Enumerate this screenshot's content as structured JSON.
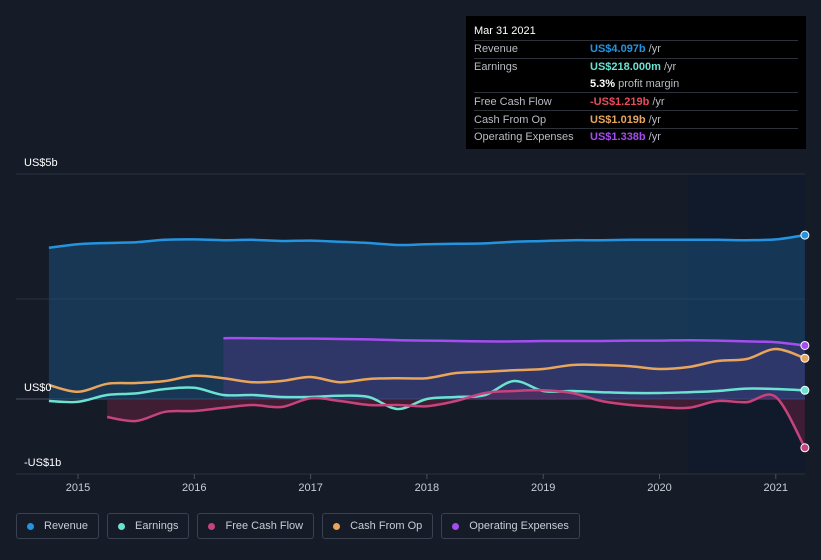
{
  "tooltip": {
    "date": "Mar 31 2021",
    "rows": [
      {
        "key": "Revenue",
        "value": "US$4.097b",
        "unit": "/yr",
        "color": "#2394df"
      },
      {
        "key": "Earnings",
        "value": "US$218.000m",
        "unit": "/yr",
        "color": "#6ce2d2"
      },
      {
        "key": "",
        "value": "5.3%",
        "unit": "profit margin",
        "color": "#ffffff"
      },
      {
        "key": "Free Cash Flow",
        "value": "-US$1.219b",
        "unit": "/yr",
        "color": "#ea4b5c"
      },
      {
        "key": "Cash From Op",
        "value": "US$1.019b",
        "unit": "/yr",
        "color": "#e9a55c"
      },
      {
        "key": "Operating Expenses",
        "value": "US$1.338b",
        "unit": "/yr",
        "color": "#a64cf0"
      }
    ]
  },
  "chart_data": {
    "type": "area",
    "y_labels": [
      "US$5b",
      "US$0",
      "-US$1b"
    ],
    "ylim": [
      -1.5,
      5.5
    ],
    "xlim": [
      2014.58,
      2021.25
    ],
    "x_ticks": [
      "2015",
      "2016",
      "2017",
      "2018",
      "2019",
      "2020",
      "2021"
    ],
    "forecast_start": 2020.25,
    "series": [
      {
        "name": "Revenue",
        "color": "#2394df",
        "points": [
          [
            2014.75,
            3.78
          ],
          [
            2015.0,
            3.87
          ],
          [
            2015.25,
            3.9
          ],
          [
            2015.5,
            3.92
          ],
          [
            2015.75,
            3.98
          ],
          [
            2016.0,
            3.99
          ],
          [
            2016.25,
            3.97
          ],
          [
            2016.5,
            3.98
          ],
          [
            2016.75,
            3.95
          ],
          [
            2017.0,
            3.96
          ],
          [
            2017.25,
            3.93
          ],
          [
            2017.5,
            3.9
          ],
          [
            2017.75,
            3.85
          ],
          [
            2018.0,
            3.87
          ],
          [
            2018.25,
            3.88
          ],
          [
            2018.5,
            3.89
          ],
          [
            2018.75,
            3.93
          ],
          [
            2019.0,
            3.95
          ],
          [
            2019.25,
            3.97
          ],
          [
            2019.5,
            3.97
          ],
          [
            2019.75,
            3.98
          ],
          [
            2020.0,
            3.98
          ],
          [
            2020.25,
            3.98
          ],
          [
            2020.5,
            3.98
          ],
          [
            2020.75,
            3.97
          ],
          [
            2021.0,
            3.99
          ],
          [
            2021.25,
            4.097
          ]
        ]
      },
      {
        "name": "Earnings",
        "color": "#6ce2d2",
        "points": [
          [
            2014.75,
            -0.05
          ],
          [
            2015.0,
            -0.07
          ],
          [
            2015.25,
            0.1
          ],
          [
            2015.5,
            0.14
          ],
          [
            2015.75,
            0.25
          ],
          [
            2016.0,
            0.28
          ],
          [
            2016.25,
            0.1
          ],
          [
            2016.5,
            0.1
          ],
          [
            2016.75,
            0.05
          ],
          [
            2017.0,
            0.05
          ],
          [
            2017.25,
            0.08
          ],
          [
            2017.5,
            0.05
          ],
          [
            2017.75,
            -0.25
          ],
          [
            2018.0,
            0.0
          ],
          [
            2018.25,
            0.05
          ],
          [
            2018.5,
            0.1
          ],
          [
            2018.75,
            0.45
          ],
          [
            2019.0,
            0.2
          ],
          [
            2019.25,
            0.2
          ],
          [
            2019.5,
            0.17
          ],
          [
            2019.75,
            0.15
          ],
          [
            2020.0,
            0.15
          ],
          [
            2020.25,
            0.17
          ],
          [
            2020.5,
            0.2
          ],
          [
            2020.75,
            0.26
          ],
          [
            2021.0,
            0.25
          ],
          [
            2021.25,
            0.218
          ]
        ]
      },
      {
        "name": "Free Cash Flow",
        "color": "#c7437e",
        "points": [
          [
            2015.25,
            -0.45
          ],
          [
            2015.5,
            -0.55
          ],
          [
            2015.75,
            -0.32
          ],
          [
            2016.0,
            -0.3
          ],
          [
            2016.25,
            -0.22
          ],
          [
            2016.5,
            -0.15
          ],
          [
            2016.75,
            -0.2
          ],
          [
            2017.0,
            0.02
          ],
          [
            2017.25,
            -0.05
          ],
          [
            2017.5,
            -0.15
          ],
          [
            2017.75,
            -0.15
          ],
          [
            2018.0,
            -0.18
          ],
          [
            2018.25,
            -0.05
          ],
          [
            2018.5,
            0.15
          ],
          [
            2018.75,
            0.2
          ],
          [
            2019.0,
            0.22
          ],
          [
            2019.25,
            0.15
          ],
          [
            2019.5,
            -0.05
          ],
          [
            2019.75,
            -0.15
          ],
          [
            2020.0,
            -0.2
          ],
          [
            2020.25,
            -0.22
          ],
          [
            2020.5,
            -0.05
          ],
          [
            2020.75,
            -0.08
          ],
          [
            2021.0,
            0.05
          ],
          [
            2021.25,
            -1.219
          ]
        ]
      },
      {
        "name": "Cash From Op",
        "color": "#e9a55c",
        "points": [
          [
            2014.75,
            0.35
          ],
          [
            2015.0,
            0.18
          ],
          [
            2015.25,
            0.38
          ],
          [
            2015.5,
            0.4
          ],
          [
            2015.75,
            0.45
          ],
          [
            2016.0,
            0.58
          ],
          [
            2016.25,
            0.52
          ],
          [
            2016.5,
            0.42
          ],
          [
            2016.75,
            0.45
          ],
          [
            2017.0,
            0.55
          ],
          [
            2017.25,
            0.42
          ],
          [
            2017.5,
            0.5
          ],
          [
            2017.75,
            0.52
          ],
          [
            2018.0,
            0.52
          ],
          [
            2018.25,
            0.65
          ],
          [
            2018.5,
            0.68
          ],
          [
            2018.75,
            0.72
          ],
          [
            2019.0,
            0.75
          ],
          [
            2019.25,
            0.85
          ],
          [
            2019.5,
            0.85
          ],
          [
            2019.75,
            0.82
          ],
          [
            2020.0,
            0.75
          ],
          [
            2020.25,
            0.8
          ],
          [
            2020.5,
            0.95
          ],
          [
            2020.75,
            1.0
          ],
          [
            2021.0,
            1.25
          ],
          [
            2021.25,
            1.019
          ]
        ]
      },
      {
        "name": "Operating Expenses",
        "color": "#a64cf0",
        "points": [
          [
            2016.25,
            1.52
          ],
          [
            2016.5,
            1.52
          ],
          [
            2016.75,
            1.51
          ],
          [
            2017.0,
            1.51
          ],
          [
            2017.25,
            1.5
          ],
          [
            2017.5,
            1.49
          ],
          [
            2017.75,
            1.47
          ],
          [
            2018.0,
            1.46
          ],
          [
            2018.25,
            1.45
          ],
          [
            2018.5,
            1.44
          ],
          [
            2018.75,
            1.44
          ],
          [
            2019.0,
            1.45
          ],
          [
            2019.25,
            1.45
          ],
          [
            2019.5,
            1.45
          ],
          [
            2019.75,
            1.46
          ],
          [
            2020.0,
            1.46
          ],
          [
            2020.25,
            1.47
          ],
          [
            2020.5,
            1.46
          ],
          [
            2020.75,
            1.44
          ],
          [
            2021.0,
            1.42
          ],
          [
            2021.25,
            1.338
          ]
        ]
      }
    ],
    "legend": [
      "Revenue",
      "Earnings",
      "Free Cash Flow",
      "Cash From Op",
      "Operating Expenses"
    ]
  }
}
